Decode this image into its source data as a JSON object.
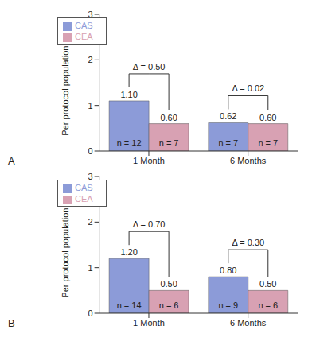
{
  "chart_data": [
    {
      "type": "bar",
      "title": "A",
      "ylabel": "Per protocol population (%)",
      "categories": [
        "1 Month",
        "6 Months"
      ],
      "series": [
        {
          "name": "CAS",
          "color": "#8c9bd8",
          "values": [
            1.1,
            0.62
          ],
          "value_labels": [
            "1.10",
            "0.62"
          ],
          "n_labels": [
            "n = 12",
            "n = 7"
          ]
        },
        {
          "name": "CEA",
          "color": "#d8a1b3",
          "values": [
            0.6,
            0.6
          ],
          "value_labels": [
            "0.60",
            "0.60"
          ],
          "n_labels": [
            "n = 7",
            "n = 7"
          ]
        }
      ],
      "annotations": [
        "Δ = 0.50",
        "Δ = 0.02"
      ],
      "ylim": [
        0,
        3
      ],
      "yticks": [
        0,
        1,
        2,
        3
      ],
      "legend": "upper left",
      "data_labels": true,
      "grid": false
    },
    {
      "type": "bar",
      "title": "B",
      "ylabel": "Per protocol population (%)",
      "categories": [
        "1 Month",
        "6 Months"
      ],
      "series": [
        {
          "name": "CAS",
          "color": "#8c9bd8",
          "values": [
            1.2,
            0.8
          ],
          "value_labels": [
            "1.20",
            "0.80"
          ],
          "n_labels": [
            "n = 14",
            "n = 9"
          ]
        },
        {
          "name": "CEA",
          "color": "#d8a1b3",
          "values": [
            0.5,
            0.5
          ],
          "value_labels": [
            "0.50",
            "0.50"
          ],
          "n_labels": [
            "n = 6",
            "n = 6"
          ]
        }
      ],
      "annotations": [
        "Δ = 0.70",
        "Δ = 0.30"
      ],
      "ylim": [
        0,
        3
      ],
      "yticks": [
        0,
        1,
        2,
        3
      ],
      "legend": "upper left",
      "data_labels": true,
      "grid": false
    }
  ]
}
